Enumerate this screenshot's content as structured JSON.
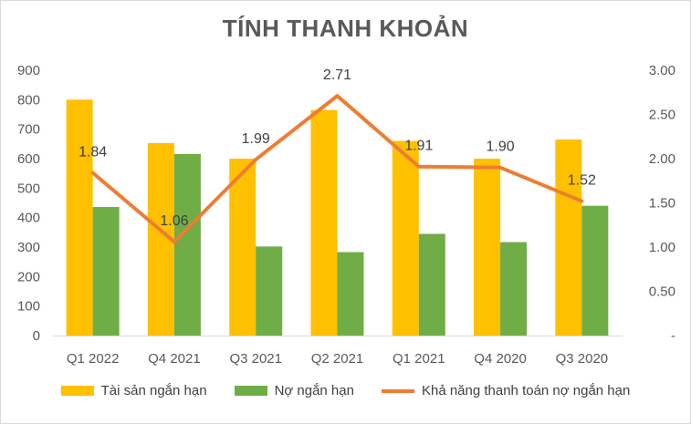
{
  "chart_data": {
    "type": "bar",
    "title": "TÍNH THANH KHOẢN",
    "categories": [
      "Q1 2022",
      "Q4 2021",
      "Q3 2021",
      "Q2 2021",
      "Q1 2021",
      "Q4 2020",
      "Q3 2020"
    ],
    "series": [
      {
        "name": "Tài sản ngắn hạn",
        "type": "bar",
        "axis": "left",
        "color": "#FFC000",
        "values": [
          800,
          653,
          600,
          765,
          660,
          600,
          665
        ]
      },
      {
        "name": "Nợ ngắn hạn",
        "type": "bar",
        "axis": "left",
        "color": "#70AD47",
        "values": [
          436,
          616,
          302,
          283,
          345,
          317,
          440
        ]
      },
      {
        "name": "Khả năng thanh toán nợ ngắn hạn",
        "type": "line",
        "axis": "right",
        "color": "#ED7D31",
        "values": [
          1.84,
          1.06,
          1.99,
          2.71,
          1.91,
          1.9,
          1.52
        ],
        "labels": [
          "1.84",
          "1.06",
          "1.99",
          "2.71",
          "1.91",
          "1.90",
          "1.52"
        ]
      }
    ],
    "y_left": {
      "min": 0,
      "max": 900,
      "step": 100,
      "ticks": [
        "0",
        "100",
        "200",
        "300",
        "400",
        "500",
        "600",
        "700",
        "800",
        "900"
      ]
    },
    "y_right": {
      "min": 0,
      "max": 3,
      "step": 0.5,
      "ticks": [
        "-",
        "0.50",
        "1.00",
        "1.50",
        "2.00",
        "2.50",
        "3.00"
      ]
    },
    "grid": false,
    "legend_position": "bottom"
  }
}
